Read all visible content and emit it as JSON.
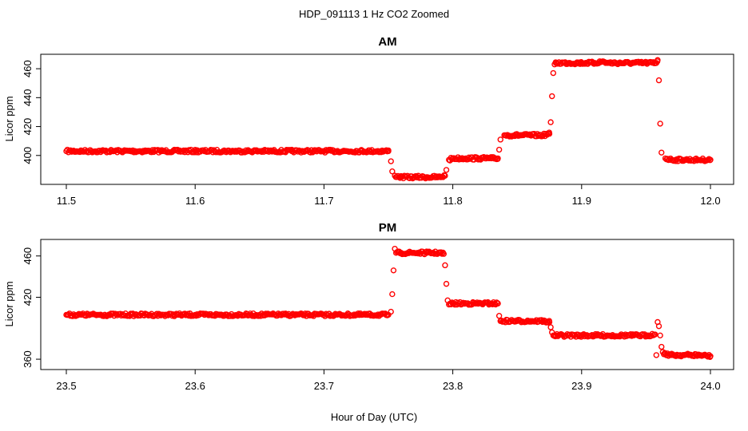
{
  "figure": {
    "title": "HDP_091113  1 Hz CO2 Zoomed",
    "xlabel": "Hour of Day (UTC)"
  },
  "colors": {
    "points": "#ff0000",
    "axes": "#000000",
    "background": "#ffffff"
  },
  "chart_data": [
    {
      "type": "scatter",
      "title": "AM",
      "xlabel": "",
      "ylabel": "Licor ppm",
      "xlim": [
        11.5,
        12.0
      ],
      "ylim": [
        380,
        470
      ],
      "xticks": [
        11.5,
        11.6,
        11.7,
        11.8,
        11.9,
        12.0
      ],
      "xtick_labels": [
        "11.5",
        "11.6",
        "11.7",
        "11.8",
        "11.9",
        "12.0"
      ],
      "yticks": [
        400,
        420,
        440,
        460
      ],
      "ytick_labels": [
        "400",
        "420",
        "440",
        "460"
      ],
      "grid": false,
      "marker": "open-circle",
      "series": [
        {
          "x": [
            11.5,
            11.525,
            11.55,
            11.575,
            11.6,
            11.625,
            11.65,
            11.675,
            11.7,
            11.725,
            11.75,
            11.752,
            11.753,
            11.755,
            11.76,
            11.77,
            11.78,
            11.79,
            11.794,
            11.795,
            11.797,
            11.8,
            11.81,
            11.82,
            11.83,
            11.835,
            11.836,
            11.837,
            11.84,
            11.85,
            11.86,
            11.87,
            11.875,
            11.876,
            11.877,
            11.878,
            11.879,
            11.88,
            11.89,
            11.9,
            11.91,
            11.917,
            11.92,
            11.93,
            11.94,
            11.95,
            11.958,
            11.959,
            11.96,
            11.961,
            11.962,
            11.965,
            11.97,
            11.98,
            11.99,
            12.0
          ],
          "y": [
            403,
            403,
            403,
            403,
            403,
            403,
            403,
            403,
            403,
            403,
            403,
            396,
            389,
            386,
            385,
            385,
            385,
            385,
            386,
            390,
            397,
            398,
            398,
            398,
            398,
            398,
            404,
            411,
            414,
            414,
            414,
            414,
            415,
            423,
            441,
            457,
            463,
            464,
            464,
            464,
            464,
            465,
            464,
            464,
            464,
            464,
            464,
            466,
            452,
            422,
            402,
            398,
            397,
            397,
            397,
            397
          ]
        }
      ]
    },
    {
      "type": "scatter",
      "title": "PM",
      "xlabel": "Hour of Day (UTC)",
      "ylabel": "Licor ppm",
      "xlim": [
        23.5,
        24.0
      ],
      "ylim": [
        350,
        476
      ],
      "xticks": [
        23.5,
        23.6,
        23.7,
        23.8,
        23.9,
        24.0
      ],
      "xtick_labels": [
        "23.5",
        "23.6",
        "23.7",
        "23.8",
        "23.9",
        "24.0"
      ],
      "yticks": [
        360,
        420,
        460
      ],
      "ytick_labels": [
        "360",
        "420",
        "460"
      ],
      "grid": false,
      "marker": "open-circle",
      "series": [
        {
          "x": [
            23.5,
            23.525,
            23.55,
            23.575,
            23.6,
            23.625,
            23.65,
            23.675,
            23.7,
            23.725,
            23.75,
            23.752,
            23.753,
            23.754,
            23.755,
            23.756,
            23.76,
            23.77,
            23.78,
            23.79,
            23.793,
            23.794,
            23.795,
            23.796,
            23.797,
            23.8,
            23.81,
            23.82,
            23.83,
            23.835,
            23.836,
            23.837,
            23.84,
            23.85,
            23.86,
            23.87,
            23.875,
            23.876,
            23.877,
            23.878,
            23.88,
            23.89,
            23.9,
            23.91,
            23.92,
            23.93,
            23.94,
            23.95,
            23.957,
            23.958,
            23.959,
            23.96,
            23.961,
            23.962,
            23.963,
            23.965,
            23.97,
            23.98,
            23.99,
            24.0
          ],
          "y": [
            403,
            403,
            403,
            403,
            403,
            403,
            403,
            403,
            403,
            403,
            403,
            406,
            423,
            446,
            467,
            463,
            463,
            463,
            463,
            463,
            462,
            451,
            433,
            417,
            413,
            414,
            414,
            414,
            414,
            414,
            402,
            397,
            397,
            397,
            397,
            397,
            396,
            391,
            386,
            383,
            383,
            383,
            383,
            383,
            383,
            383,
            383,
            383,
            384,
            364,
            396,
            392,
            383,
            372,
            367,
            365,
            364,
            364,
            364,
            363
          ]
        }
      ]
    }
  ]
}
